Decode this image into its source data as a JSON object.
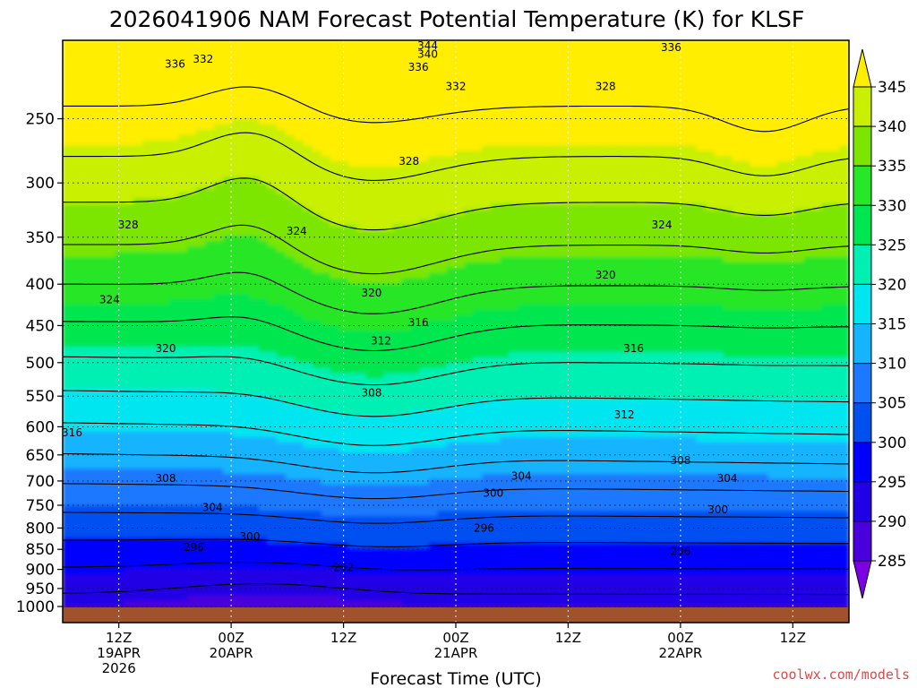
{
  "chart_data": {
    "type": "heatmap",
    "title": "2026041906 NAM Forecast Potential Temperature (K) for KLSF",
    "xlabel": "Forecast Time (UTC)",
    "ylabel": "",
    "y_scale": "log-pressure",
    "y_ticks": [
      250,
      300,
      350,
      400,
      450,
      500,
      550,
      600,
      650,
      700,
      750,
      800,
      850,
      900,
      950,
      1000
    ],
    "y_range": [
      200,
      1000
    ],
    "x_range_hours": [
      0,
      84
    ],
    "x_ticks": [
      {
        "hour": 6,
        "lines": [
          "12Z",
          "19APR",
          "2026"
        ]
      },
      {
        "hour": 18,
        "lines": [
          "00Z",
          "20APR"
        ]
      },
      {
        "hour": 30,
        "lines": [
          "12Z"
        ]
      },
      {
        "hour": 42,
        "lines": [
          "00Z",
          "21APR"
        ]
      },
      {
        "hour": 54,
        "lines": [
          "12Z"
        ]
      },
      {
        "hour": 66,
        "lines": [
          "00Z",
          "22APR"
        ]
      },
      {
        "hour": 78,
        "lines": [
          "12Z"
        ]
      }
    ],
    "grid": "dotted",
    "colorbar": {
      "ticks": [
        285,
        290,
        295,
        300,
        305,
        310,
        315,
        320,
        325,
        330,
        335,
        340,
        345
      ],
      "colors": [
        "#7c00e6",
        "#4a00dc",
        "#2000e6",
        "#0000ff",
        "#0050f0",
        "#1c78ff",
        "#14b4ff",
        "#00e6f0",
        "#00f0b4",
        "#00e650",
        "#28e628",
        "#7ce600",
        "#c8f000",
        "#ffee00"
      ]
    },
    "contour_interval": 4,
    "contour_labels": [
      {
        "value": "344",
        "hour": 39,
        "p": 203
      },
      {
        "value": "340",
        "hour": 39,
        "p": 208
      },
      {
        "value": "336",
        "hour": 65,
        "p": 204
      },
      {
        "value": "336",
        "hour": 12,
        "p": 214
      },
      {
        "value": "332",
        "hour": 15,
        "p": 211
      },
      {
        "value": "336",
        "hour": 38,
        "p": 216
      },
      {
        "value": "332",
        "hour": 42,
        "p": 228
      },
      {
        "value": "328",
        "hour": 58,
        "p": 228
      },
      {
        "value": "328",
        "hour": 37,
        "p": 282
      },
      {
        "value": "328",
        "hour": 7,
        "p": 338
      },
      {
        "value": "324",
        "hour": 25,
        "p": 344
      },
      {
        "value": "324",
        "hour": 64,
        "p": 338
      },
      {
        "value": "324",
        "hour": 5,
        "p": 418
      },
      {
        "value": "320",
        "hour": 33,
        "p": 410
      },
      {
        "value": "320",
        "hour": 58,
        "p": 390
      },
      {
        "value": "316",
        "hour": 38,
        "p": 446
      },
      {
        "value": "312",
        "hour": 34,
        "p": 470
      },
      {
        "value": "320",
        "hour": 11,
        "p": 480
      },
      {
        "value": "316",
        "hour": 61,
        "p": 480
      },
      {
        "value": "308",
        "hour": 33,
        "p": 545
      },
      {
        "value": "312",
        "hour": 60,
        "p": 580
      },
      {
        "value": "316",
        "hour": 1,
        "p": 610
      },
      {
        "value": "308",
        "hour": 66,
        "p": 660
      },
      {
        "value": "304",
        "hour": 49,
        "p": 690
      },
      {
        "value": "304",
        "hour": 71,
        "p": 695
      },
      {
        "value": "308",
        "hour": 11,
        "p": 695
      },
      {
        "value": "300",
        "hour": 46,
        "p": 725
      },
      {
        "value": "304",
        "hour": 16,
        "p": 755
      },
      {
        "value": "300",
        "hour": 70,
        "p": 760
      },
      {
        "value": "296",
        "hour": 45,
        "p": 800
      },
      {
        "value": "300",
        "hour": 20,
        "p": 820
      },
      {
        "value": "296",
        "hour": 14,
        "p": 845
      },
      {
        "value": "296",
        "hour": 66,
        "p": 855
      },
      {
        "value": "292",
        "hour": 30,
        "p": 895
      }
    ]
  },
  "credit": "coolwx.com/models"
}
